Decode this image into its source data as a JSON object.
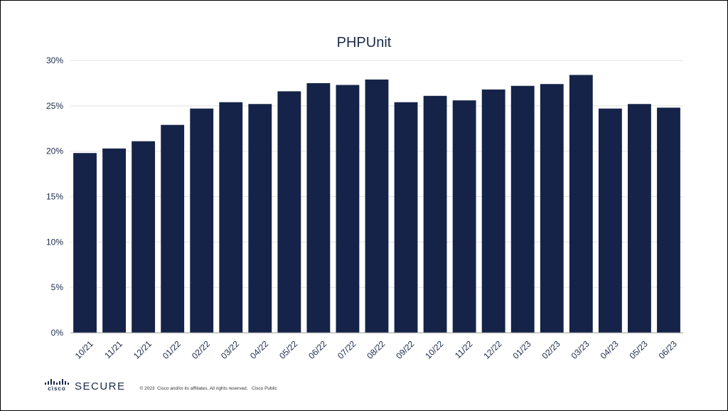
{
  "chart_data": {
    "type": "bar",
    "title": "PHPUnit",
    "xlabel": "",
    "ylabel": "",
    "categories": [
      "10/21",
      "11/21",
      "12/21",
      "01/22",
      "02/22",
      "03/22",
      "04/22",
      "05/22",
      "06/22",
      "07/22",
      "08/22",
      "09/22",
      "10/22",
      "11/22",
      "12/22",
      "01/23",
      "02/23",
      "03/23",
      "04/23",
      "05/23",
      "06/23"
    ],
    "values": [
      19.8,
      20.3,
      21.1,
      22.9,
      24.7,
      25.4,
      25.2,
      26.6,
      27.5,
      27.3,
      27.9,
      25.4,
      26.1,
      25.6,
      26.8,
      27.2,
      27.4,
      28.4,
      24.7,
      25.2,
      24.8
    ],
    "ylim": [
      0,
      30
    ],
    "yticks": [
      "0%",
      "5%",
      "10%",
      "15%",
      "20%",
      "25%",
      "30%"
    ],
    "unit": "%",
    "grid": true,
    "bar_color": "#152348"
  },
  "footer": {
    "logo_word": "cisco",
    "logo_secure": "SECURE",
    "copyright": "© 2023  Cisco and/or its affiliates. All rights reserved.   Cisco Public"
  }
}
